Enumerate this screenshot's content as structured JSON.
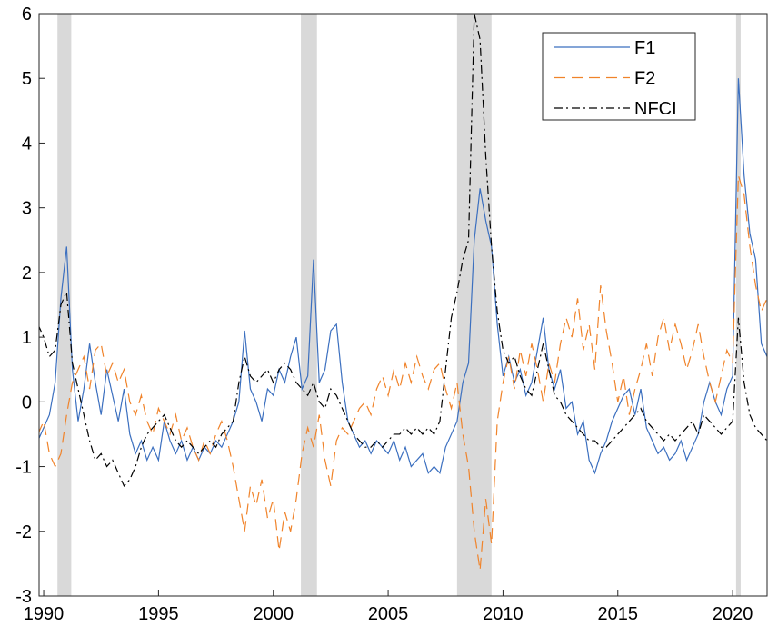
{
  "chart_data": {
    "type": "line",
    "x": [
      1989.75,
      1990,
      1990.25,
      1990.5,
      1990.75,
      1991,
      1991.25,
      1991.5,
      1991.75,
      1992,
      1992.25,
      1992.5,
      1992.75,
      1993,
      1993.25,
      1993.5,
      1993.75,
      1994,
      1994.25,
      1994.5,
      1994.75,
      1995,
      1995.25,
      1995.5,
      1995.75,
      1996,
      1996.25,
      1996.5,
      1996.75,
      1997,
      1997.25,
      1997.5,
      1997.75,
      1998,
      1998.25,
      1998.5,
      1998.75,
      1999,
      1999.25,
      1999.5,
      1999.75,
      2000,
      2000.25,
      2000.5,
      2000.75,
      2001,
      2001.25,
      2001.5,
      2001.75,
      2002,
      2002.25,
      2002.5,
      2002.75,
      2003,
      2003.25,
      2003.5,
      2003.75,
      2004,
      2004.25,
      2004.5,
      2004.75,
      2005,
      2005.25,
      2005.5,
      2005.75,
      2006,
      2006.25,
      2006.5,
      2006.75,
      2007,
      2007.25,
      2007.5,
      2007.75,
      2008,
      2008.25,
      2008.5,
      2008.75,
      2009,
      2009.25,
      2009.5,
      2009.75,
      2010,
      2010.25,
      2010.5,
      2010.75,
      2011,
      2011.25,
      2011.5,
      2011.75,
      2012,
      2012.25,
      2012.5,
      2012.75,
      2013,
      2013.25,
      2013.5,
      2013.75,
      2014,
      2014.25,
      2014.5,
      2014.75,
      2015,
      2015.25,
      2015.5,
      2015.75,
      2016,
      2016.25,
      2016.5,
      2016.75,
      2017,
      2017.25,
      2017.5,
      2017.75,
      2018,
      2018.25,
      2018.5,
      2018.75,
      2019,
      2019.25,
      2019.5,
      2019.75,
      2020,
      2020.25,
      2020.5,
      2020.75,
      2021,
      2021.25,
      2021.5
    ],
    "series": [
      {
        "name": "F1",
        "color": "#3b6fbf",
        "linestyle": "solid",
        "values": [
          -0.6,
          -0.4,
          -0.2,
          0.3,
          1.6,
          2.4,
          0.5,
          -0.3,
          0.2,
          0.9,
          0.3,
          -0.2,
          0.5,
          0.1,
          -0.3,
          0.2,
          -0.5,
          -0.8,
          -0.6,
          -0.9,
          -0.7,
          -0.9,
          -0.3,
          -0.6,
          -0.8,
          -0.6,
          -0.9,
          -0.7,
          -0.9,
          -0.7,
          -0.8,
          -0.6,
          -0.7,
          -0.5,
          -0.3,
          0.0,
          1.1,
          0.2,
          0.0,
          -0.3,
          0.2,
          0.1,
          0.5,
          0.3,
          0.7,
          1.0,
          0.2,
          0.4,
          2.2,
          0.3,
          0.5,
          1.1,
          1.2,
          0.3,
          -0.3,
          -0.5,
          -0.7,
          -0.6,
          -0.8,
          -0.6,
          -0.7,
          -0.8,
          -0.6,
          -0.9,
          -0.7,
          -1.0,
          -0.9,
          -0.8,
          -1.1,
          -1.0,
          -1.1,
          -0.7,
          -0.5,
          -0.3,
          0.3,
          0.6,
          2.5,
          3.3,
          2.8,
          2.4,
          1.2,
          0.4,
          0.7,
          0.3,
          0.5,
          0.1,
          0.3,
          0.8,
          1.3,
          0.5,
          0.2,
          0.5,
          -0.1,
          0.0,
          -0.5,
          -0.3,
          -0.9,
          -1.1,
          -0.8,
          -0.6,
          -0.3,
          -0.1,
          0.1,
          0.2,
          -0.2,
          0.2,
          -0.4,
          -0.6,
          -0.8,
          -0.7,
          -0.9,
          -0.8,
          -0.6,
          -0.9,
          -0.7,
          -0.5,
          0.0,
          0.3,
          0.0,
          -0.2,
          0.2,
          0.4,
          5.0,
          3.5,
          2.6,
          2.2,
          0.9,
          0.7
        ]
      },
      {
        "name": "F2",
        "color": "#f0832a",
        "linestyle": "dashed",
        "values": [
          -0.5,
          -0.3,
          -0.8,
          -1.0,
          -0.8,
          -0.2,
          0.3,
          0.5,
          0.7,
          0.2,
          0.8,
          0.9,
          0.4,
          0.6,
          0.3,
          0.5,
          0.0,
          -0.2,
          0.1,
          -0.3,
          -0.5,
          -0.1,
          -0.3,
          -0.5,
          -0.2,
          -0.6,
          -0.4,
          -0.7,
          -0.9,
          -0.6,
          -0.8,
          -0.5,
          -0.3,
          -0.6,
          -1.0,
          -1.5,
          -2.0,
          -1.3,
          -1.6,
          -1.2,
          -1.8,
          -1.5,
          -2.3,
          -1.7,
          -2.0,
          -1.5,
          -0.8,
          -0.4,
          -0.7,
          -0.2,
          -0.9,
          -1.3,
          -0.6,
          -0.4,
          -0.5,
          -0.3,
          -0.1,
          0.0,
          -0.2,
          0.2,
          0.4,
          0.1,
          0.5,
          0.2,
          0.6,
          0.3,
          0.7,
          0.4,
          0.2,
          0.5,
          0.6,
          0.2,
          -0.1,
          0.3,
          -0.5,
          -1.0,
          -2.0,
          -2.6,
          -1.5,
          -2.2,
          -0.3,
          0.3,
          0.7,
          0.2,
          0.8,
          0.4,
          0.9,
          0.5,
          0.0,
          0.6,
          0.3,
          0.9,
          1.3,
          1.0,
          1.6,
          0.8,
          1.2,
          0.5,
          1.8,
          1.1,
          0.6,
          0.0,
          0.4,
          -0.2,
          0.2,
          0.5,
          0.9,
          0.4,
          1.0,
          1.3,
          0.8,
          1.2,
          0.9,
          0.5,
          0.8,
          1.2,
          0.7,
          0.3,
          0.0,
          0.4,
          0.8,
          0.6,
          3.5,
          3.2,
          2.4,
          1.8,
          1.4,
          1.6
        ]
      },
      {
        "name": "NFCI",
        "color": "#000000",
        "linestyle": "dashdot",
        "values": [
          1.2,
          1.0,
          0.7,
          0.8,
          1.5,
          1.7,
          0.6,
          0.2,
          -0.2,
          -0.6,
          -0.9,
          -0.8,
          -1.0,
          -0.9,
          -1.1,
          -1.3,
          -1.2,
          -1.0,
          -0.7,
          -0.5,
          -0.4,
          -0.3,
          -0.2,
          -0.4,
          -0.6,
          -0.7,
          -0.6,
          -0.7,
          -0.8,
          -0.7,
          -0.6,
          -0.7,
          -0.5,
          -0.4,
          -0.3,
          0.3,
          0.7,
          0.4,
          0.3,
          0.4,
          0.5,
          0.3,
          0.5,
          0.6,
          0.5,
          0.3,
          0.2,
          0.1,
          0.3,
          0.0,
          -0.1,
          0.2,
          0.1,
          -0.1,
          -0.3,
          -0.5,
          -0.6,
          -0.7,
          -0.7,
          -0.6,
          -0.7,
          -0.6,
          -0.5,
          -0.5,
          -0.4,
          -0.5,
          -0.4,
          -0.5,
          -0.4,
          -0.5,
          -0.3,
          0.5,
          1.3,
          1.7,
          2.2,
          2.5,
          6.0,
          5.6,
          3.8,
          2.4,
          1.4,
          0.8,
          0.6,
          0.7,
          0.4,
          0.2,
          0.1,
          0.5,
          0.9,
          0.5,
          0.1,
          0.0,
          -0.2,
          -0.3,
          -0.4,
          -0.5,
          -0.6,
          -0.6,
          -0.7,
          -0.7,
          -0.6,
          -0.5,
          -0.4,
          -0.3,
          -0.2,
          -0.1,
          -0.3,
          -0.4,
          -0.5,
          -0.6,
          -0.5,
          -0.6,
          -0.5,
          -0.4,
          -0.3,
          -0.5,
          -0.2,
          -0.3,
          -0.4,
          -0.5,
          -0.4,
          -0.3,
          1.3,
          0.3,
          -0.2,
          -0.4,
          -0.5,
          -0.6
        ]
      }
    ],
    "shaded_periods": [
      [
        1990.6,
        1991.2
      ],
      [
        2001.2,
        2001.9
      ],
      [
        2008.0,
        2009.5
      ],
      [
        2020.15,
        2020.35
      ]
    ],
    "shade_color": "#d9d9d9",
    "xlim": [
      1989.8,
      2021.5
    ],
    "xticks": [
      1990,
      1995,
      2000,
      2005,
      2010,
      2015,
      2020
    ],
    "ylim": [
      -3,
      6
    ],
    "yticks": [
      -3,
      -2,
      -1,
      0,
      1,
      2,
      3,
      4,
      5,
      6
    ],
    "legend": "upper right"
  }
}
